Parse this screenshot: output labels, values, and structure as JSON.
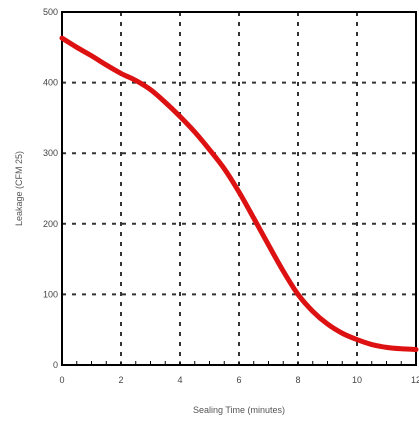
{
  "chart_data": {
    "type": "line",
    "title": "",
    "xlabel": "Sealing Time (minutes)",
    "ylabel": "Leakage (CFM 25)",
    "xlim": [
      0,
      12
    ],
    "ylim": [
      0,
      500
    ],
    "x_ticks": [
      0,
      2,
      4,
      6,
      8,
      10,
      12
    ],
    "x_tick_labels": [
      "0",
      "2",
      "4",
      "6",
      "8",
      "10",
      "12"
    ],
    "y_ticks": [
      0,
      100,
      200,
      300,
      400,
      500
    ],
    "y_tick_labels": [
      "0",
      "100",
      "200",
      "300",
      "400",
      "500"
    ],
    "grid": true,
    "grid_style": "dashed",
    "legend": "none",
    "series": [
      {
        "color": "#dd1111",
        "x": [
          0,
          0.5,
          1,
          1.5,
          2,
          2.5,
          3,
          3.5,
          4,
          4.5,
          5,
          5.5,
          6,
          6.5,
          7,
          7.5,
          8,
          8.5,
          9,
          9.5,
          10,
          10.5,
          11,
          11.5,
          12
        ],
        "y": [
          463,
          450,
          438,
          425,
          413,
          403,
          390,
          372,
          352,
          330,
          305,
          278,
          245,
          208,
          170,
          133,
          100,
          76,
          58,
          45,
          36,
          29,
          25,
          23,
          22
        ]
      }
    ]
  }
}
